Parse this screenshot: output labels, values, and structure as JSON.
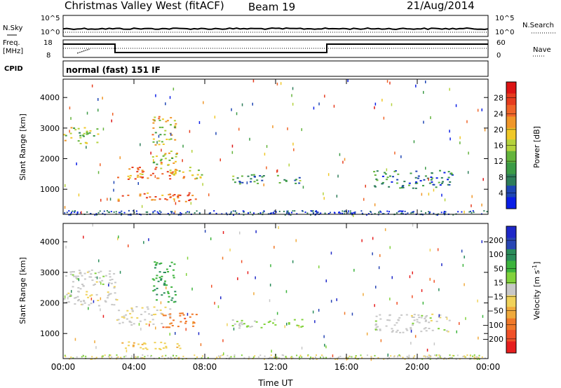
{
  "header": {
    "title": "Christmas Valley West (fitACF)",
    "beam": "Beam 19",
    "date": "21/Aug/2014"
  },
  "top_panels": {
    "nsky_label": "N.Sky",
    "nsky_left_ticks": [
      "10^5",
      "10^0"
    ],
    "nsky_right_ticks": [
      "10^5",
      "10^0"
    ],
    "nsearch_label": "N.Search",
    "freq_label_1": "Freq.",
    "freq_label_2": "[MHz]",
    "freq_left_ticks": [
      "18",
      "8"
    ],
    "nave_right_ticks": [
      "60",
      "0"
    ],
    "nave_label": "Nave",
    "cpid_label": "CPID",
    "cpid_text": "normal (fast) 151 IF"
  },
  "colors": {
    "power": [
      "#0a1ee6",
      "#1e46b4",
      "#2e7d5a",
      "#3c9b46",
      "#64b43c",
      "#b4d23c",
      "#f0c828",
      "#f09628",
      "#f06428",
      "#e63c1e",
      "#dc1414"
    ],
    "velocity": [
      "#1e28c8",
      "#2846b4",
      "#2a8c5a",
      "#3cb43c",
      "#82d23c",
      "#c8c8c8",
      "#f0d25a",
      "#f0aa3c",
      "#f07828",
      "#f05028",
      "#e61e1e"
    ]
  },
  "chart_data": [
    {
      "type": "heatmap",
      "name": "power",
      "xlabel": "",
      "ylabel": "Slant Range [km]",
      "xlim": [
        0,
        24
      ],
      "ylim": [
        180,
        4600
      ],
      "yticks": [
        1000,
        2000,
        3000,
        4000
      ],
      "ytick_labels": [
        "1000",
        "2000",
        "3000",
        "4000"
      ],
      "colorbar": {
        "label": "Power [dB]",
        "range": [
          0,
          32
        ],
        "ticks": [
          4,
          8,
          12,
          16,
          20,
          24,
          28
        ],
        "tick_labels": [
          "4",
          "8",
          "12",
          "16",
          "20",
          "24",
          "28"
        ]
      },
      "echo_regions": [
        {
          "t": [
            0.0,
            2.0
          ],
          "range_km": [
            2500,
            3050
          ],
          "level": 0.45
        },
        {
          "t": [
            2.8,
            6.5
          ],
          "range_km": [
            1350,
            1750
          ],
          "level": 0.75
        },
        {
          "t": [
            5.0,
            6.4
          ],
          "range_km": [
            1800,
            3400
          ],
          "level": 0.55
        },
        {
          "t": [
            6.0,
            7.8
          ],
          "range_km": [
            1350,
            1750
          ],
          "level": 0.6
        },
        {
          "t": [
            3.0,
            7.5
          ],
          "range_km": [
            600,
            900
          ],
          "level": 0.8
        },
        {
          "t": [
            9.5,
            13.5
          ],
          "range_km": [
            1200,
            1500
          ],
          "level": 0.25
        },
        {
          "t": [
            17.5,
            22.0
          ],
          "range_km": [
            1050,
            1650
          ],
          "level": 0.2
        }
      ]
    },
    {
      "type": "heatmap",
      "name": "velocity",
      "xlabel": "Time UT",
      "ylabel": "Slant Range [km]",
      "xlim": [
        0,
        24
      ],
      "ylim": [
        180,
        4600
      ],
      "xticks": [
        0,
        4,
        8,
        12,
        16,
        20,
        24
      ],
      "xtick_labels": [
        "00:00",
        "04:00",
        "08:00",
        "12:00",
        "16:00",
        "20:00",
        "00:00"
      ],
      "yticks": [
        1000,
        2000,
        3000,
        4000
      ],
      "ytick_labels": [
        "1000",
        "2000",
        "3000",
        "4000"
      ],
      "colorbar": {
        "label": "Velocity [m s^-1]",
        "range": [
          -250,
          250
        ],
        "ticks": [
          200,
          100,
          50,
          15,
          -15,
          -50,
          -100,
          -200
        ],
        "tick_labels": [
          "200",
          "100",
          "50",
          "15",
          "−15",
          "−50",
          "−100",
          "−200"
        ]
      },
      "echo_regions": [
        {
          "t": [
            0.0,
            3.0
          ],
          "range_km": [
            1900,
            3100
          ],
          "vel": 0
        },
        {
          "t": [
            3.0,
            6.0
          ],
          "range_km": [
            1300,
            1900
          ],
          "vel": -20
        },
        {
          "t": [
            5.5,
            7.5
          ],
          "range_km": [
            1200,
            1700
          ],
          "vel": -150
        },
        {
          "t": [
            5.0,
            6.3
          ],
          "range_km": [
            2000,
            3400
          ],
          "vel": 120
        },
        {
          "t": [
            3.0,
            7.0
          ],
          "range_km": [
            500,
            750
          ],
          "vel": -60
        },
        {
          "t": [
            9.5,
            13.5
          ],
          "range_km": [
            1200,
            1500
          ],
          "vel": 40
        },
        {
          "t": [
            17.5,
            22.0
          ],
          "range_km": [
            1050,
            1650
          ],
          "vel": 0
        }
      ]
    }
  ]
}
